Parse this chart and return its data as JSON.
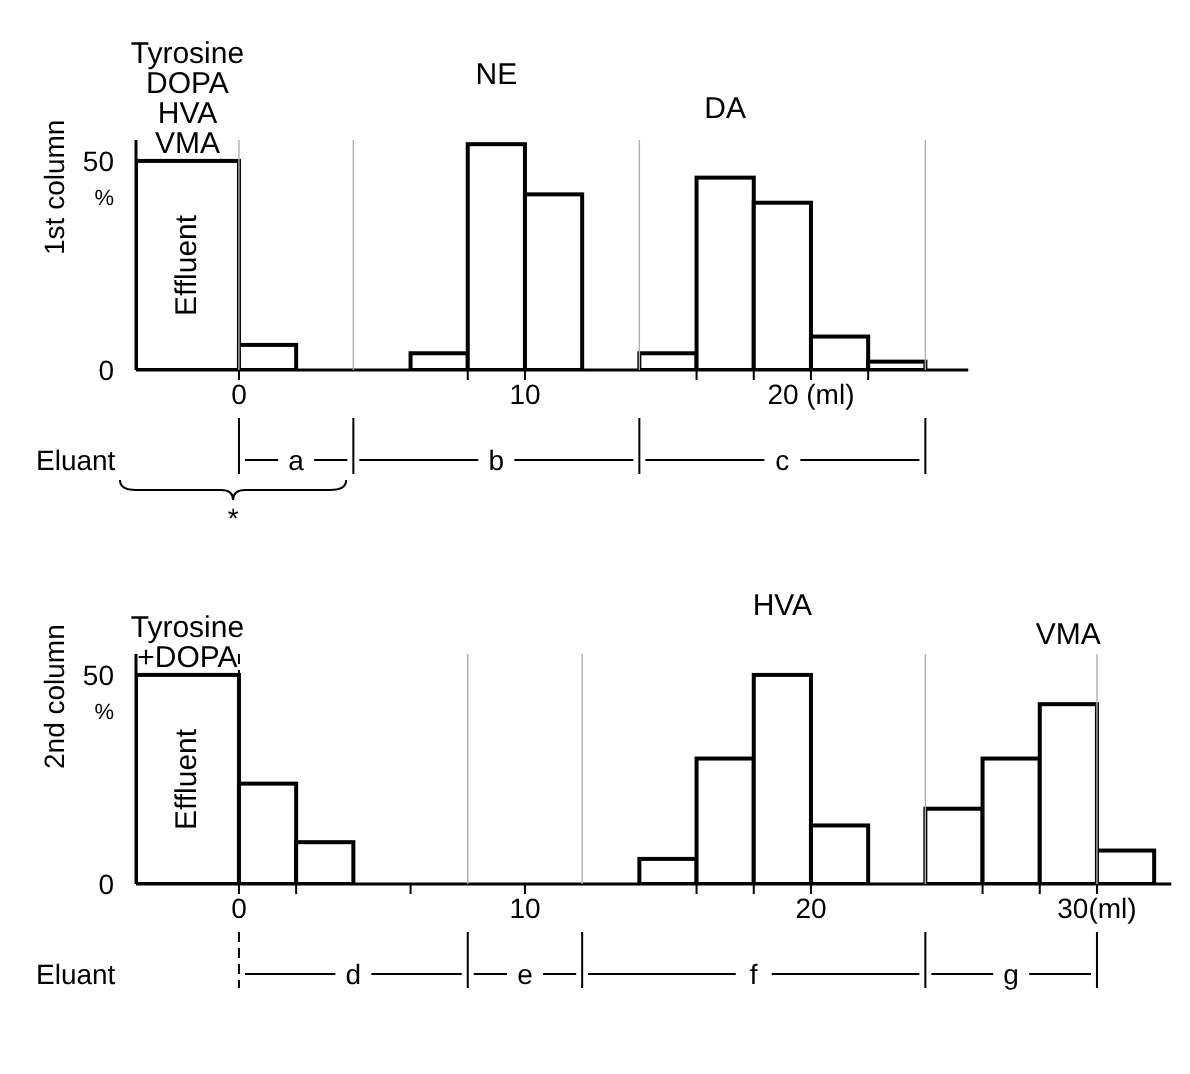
{
  "chart_data": [
    {
      "type": "histogram",
      "ylabel": "1st column",
      "color": "#000000",
      "bins": [
        -3.6,
        0,
        2,
        6,
        8,
        10,
        12,
        14,
        16,
        18,
        20,
        22,
        24
      ],
      "values": [
        50,
        6,
        0,
        4,
        54,
        42,
        0,
        4,
        46,
        40,
        8,
        2
      ],
      "xlim": [
        -3.6,
        25.5
      ],
      "xticks": [
        0,
        {
          "value": 8,
          "label": null
        },
        10,
        {
          "value": 16,
          "label": null
        },
        {
          "value": 18,
          "label": null
        },
        {
          "value": 20,
          "label": "20 (ml)"
        },
        {
          "value": 22,
          "label": null
        }
      ],
      "ylim": [
        0,
        55
      ],
      "yticks": [
        0,
        {
          "value": 50,
          "label": "50$_{%}$"
        }
      ],
      "ref_lines": [
        {
          "axis": "x",
          "value": 0
        },
        {
          "axis": "x",
          "value": 4
        },
        {
          "axis": "x",
          "value": 14
        },
        {
          "axis": "x",
          "value": 24
        }
      ],
      "annotations": [
        "Eluant",
        "Effluent",
        "a",
        "b",
        "c",
        "*",
        {
          "text": "Tyrosine\nDOPA\nHVA\nVMA",
          "x": -1.8,
          "y": 50
        },
        {
          "text": "NE",
          "x": 9,
          "y": 54
        },
        {
          "text": "DA",
          "x": 17,
          "y": 46
        }
      ],
      "grid": false,
      "legend": false
    },
    {
      "type": "histogram",
      "ylabel": "2nd column",
      "color": "#000000",
      "bins": [
        -3.6,
        0,
        2,
        4,
        14,
        16,
        18,
        20,
        22,
        24,
        26,
        28,
        30,
        32
      ],
      "values": [
        50,
        24,
        10,
        0,
        6,
        30,
        50,
        14,
        0,
        18,
        30,
        43,
        8
      ],
      "xlim": [
        -3.6,
        32.6
      ],
      "xticks": [
        0,
        {
          "value": 2,
          "label": null
        },
        {
          "value": 6,
          "label": null
        },
        10,
        {
          "value": 16,
          "label": null
        },
        {
          "value": 18,
          "label": null
        },
        20,
        {
          "value": 26,
          "label": null
        },
        {
          "value": 28,
          "label": null
        },
        {
          "value": 30,
          "label": "30(ml)"
        }
      ],
      "ylim": [
        0,
        55
      ],
      "yticks": [
        0,
        {
          "value": 50,
          "label": "50$_{%}$"
        }
      ],
      "ref_lines": [
        {
          "axis": "x",
          "value": 0,
          "line_style": "dashed"
        },
        {
          "axis": "x",
          "value": 8
        },
        {
          "axis": "x",
          "value": 12
        },
        {
          "axis": "x",
          "value": 24
        },
        {
          "axis": "x",
          "value": 30
        }
      ],
      "annotations": [
        "Eluant",
        "Effluent",
        "d",
        "e",
        "f",
        "g",
        {
          "text": "Tyrosine\n+DOPA",
          "x": -1.8,
          "y": 50
        },
        {
          "text": "HVA",
          "x": 19,
          "y": 50
        },
        {
          "text": "VMA",
          "x": 29,
          "y": 43
        }
      ],
      "grid": false,
      "legend": false
    }
  ]
}
